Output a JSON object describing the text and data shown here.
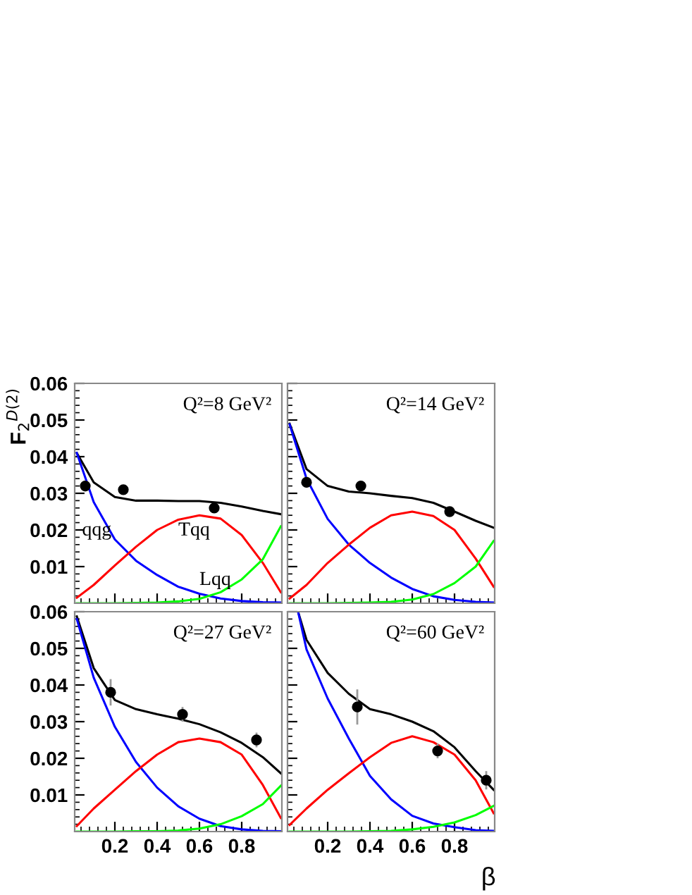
{
  "chart_data": [
    {
      "type": "line",
      "annotations": [
        "Q²=8 GeV²"
      ],
      "ylabel": "F$_{2}$$^{D(2)}$",
      "xlim": [
        0.01,
        0.99
      ],
      "ylim": [
        0,
        0.06
      ],
      "yticks": [
        0.01,
        0.02,
        0.03,
        0.04,
        0.05,
        0.06
      ],
      "xticks": [
        0.2,
        0.4,
        0.6,
        0.8
      ],
      "tick_labels": "y",
      "grid": false,
      "legend": false,
      "x": [
        0.02,
        0.1,
        0.2,
        0.3,
        0.4,
        0.5,
        0.6,
        0.7,
        0.8,
        0.9,
        0.985
      ],
      "series": [
        {
          "color": "#000000",
          "values": [
            0.041,
            0.033,
            0.029,
            0.028,
            0.028,
            0.0279,
            0.0279,
            0.0274,
            0.0264,
            0.0252,
            0.0243
          ]
        },
        {
          "name": "qqg",
          "color": "#0000ff",
          "values": [
            0.041,
            0.0276,
            0.0174,
            0.0116,
            0.0077,
            0.0045,
            0.0026,
            0.0013,
            0.0006,
            0.0003,
            0.0002
          ]
        },
        {
          "name": "Tqq",
          "color": "#ff0000",
          "values": [
            0.0015,
            0.005,
            0.0103,
            0.0154,
            0.02,
            0.0228,
            0.024,
            0.0231,
            0.0186,
            0.011,
            0.003
          ]
        },
        {
          "name": "Lqq",
          "color": "#00ff00",
          "values": [
            0,
            0,
            0,
            0.0001,
            0.0002,
            0.0005,
            0.0012,
            0.003,
            0.0065,
            0.012,
            0.021
          ]
        },
        {
          "type": "scatter",
          "color": "#000000",
          "x": [
            0.06,
            0.24,
            0.67
          ],
          "values": [
            0.032,
            0.031,
            0.026
          ],
          "errors": [
            0.0015,
            0.0012,
            0.0012
          ]
        }
      ]
    },
    {
      "type": "line",
      "annotations": [
        "Q²=14 GeV²"
      ],
      "xlim": [
        0.01,
        0.99
      ],
      "ylim": [
        0,
        0.06
      ],
      "yticks": [
        0.01,
        0.02,
        0.03,
        0.04,
        0.05,
        0.06
      ],
      "xticks": [
        0.2,
        0.4,
        0.6,
        0.8
      ],
      "tick_labels": false,
      "grid": false,
      "legend": false,
      "x": [
        0.02,
        0.1,
        0.2,
        0.3,
        0.4,
        0.5,
        0.6,
        0.7,
        0.8,
        0.9,
        0.985
      ],
      "series": [
        {
          "color": "#000000",
          "values": [
            0.049,
            0.0366,
            0.032,
            0.0305,
            0.03,
            0.0293,
            0.0287,
            0.0274,
            0.025,
            0.0225,
            0.0206
          ]
        },
        {
          "color": "#0000ff",
          "values": [
            0.0488,
            0.034,
            0.023,
            0.016,
            0.011,
            0.007,
            0.0039,
            0.0019,
            0.0009,
            0.0004,
            0.0002
          ]
        },
        {
          "color": "#ff0000",
          "values": [
            0.0013,
            0.005,
            0.011,
            0.016,
            0.0206,
            0.024,
            0.025,
            0.0238,
            0.02,
            0.0122,
            0.0045
          ]
        },
        {
          "color": "#00ff00",
          "values": [
            0,
            0,
            0,
            0.0001,
            0.0002,
            0.0004,
            0.001,
            0.0025,
            0.0055,
            0.01,
            0.017
          ]
        },
        {
          "type": "scatter",
          "color": "#000000",
          "x": [
            0.1,
            0.357,
            0.777
          ],
          "values": [
            0.033,
            0.032,
            0.025
          ],
          "errors": [
            0.0015,
            0.0012,
            0.0012
          ]
        }
      ]
    },
    {
      "type": "line",
      "annotations": [
        "Q²=27 GeV²"
      ],
      "xlim": [
        0.01,
        0.99
      ],
      "ylim": [
        0,
        0.06
      ],
      "yticks": [
        0.01,
        0.02,
        0.03,
        0.04,
        0.05,
        0.06
      ],
      "xticks": [
        0.2,
        0.4,
        0.6,
        0.8
      ],
      "grid": false,
      "legend": false,
      "x": [
        0.02,
        0.1,
        0.2,
        0.3,
        0.4,
        0.5,
        0.6,
        0.7,
        0.8,
        0.9,
        0.985
      ],
      "series": [
        {
          "color": "#000000",
          "values": [
            0.0587,
            0.0446,
            0.0359,
            0.0334,
            0.032,
            0.0308,
            0.0293,
            0.0271,
            0.0242,
            0.0203,
            0.0159
          ]
        },
        {
          "color": "#0000ff",
          "values": [
            0.058,
            0.042,
            0.0286,
            0.019,
            0.012,
            0.0069,
            0.0035,
            0.0015,
            0.0006,
            0.0002,
            0.0001
          ]
        },
        {
          "color": "#ff0000",
          "values": [
            0.0015,
            0.0063,
            0.0114,
            0.0165,
            0.021,
            0.0244,
            0.0254,
            0.0244,
            0.021,
            0.0127,
            0.0037
          ]
        },
        {
          "color": "#00ff00",
          "values": [
            0,
            0,
            0,
            0.0001,
            0.0001,
            0.0003,
            0.0008,
            0.002,
            0.0042,
            0.0075,
            0.0125
          ]
        },
        {
          "type": "scatter",
          "color": "#000000",
          "x": [
            0.18,
            0.52,
            0.87
          ],
          "values": [
            0.038,
            0.032,
            0.025
          ],
          "errors": [
            0.0036,
            0.002,
            0.002
          ]
        }
      ]
    },
    {
      "type": "line",
      "annotations": [
        "Q²=60 GeV²"
      ],
      "xlabel": "β",
      "xlim": [
        0.01,
        0.99
      ],
      "ylim": [
        0,
        0.06
      ],
      "yticks": [
        0.01,
        0.02,
        0.03,
        0.04,
        0.05,
        0.06
      ],
      "xticks": [
        0.2,
        0.4,
        0.6,
        0.8
      ],
      "tick_labels": "x",
      "grid": false,
      "legend": false,
      "x": [
        0.06,
        0.1,
        0.2,
        0.3,
        0.4,
        0.5,
        0.6,
        0.7,
        0.8,
        0.9,
        0.985
      ],
      "series": [
        {
          "color": "#000000",
          "values": [
            0.06,
            0.0523,
            0.0433,
            0.0376,
            0.0334,
            0.032,
            0.03,
            0.0274,
            0.023,
            0.0165,
            0.0114
          ]
        },
        {
          "color": "#0000ff",
          "values": [
            0.06,
            0.0497,
            0.0363,
            0.0254,
            0.0152,
            0.0088,
            0.0043,
            0.0022,
            0.0012,
            0.0004,
            0.0002
          ]
        },
        {
          "color": "#ff0000",
          "x": [
            0.02,
            0.1,
            0.2,
            0.3,
            0.4,
            0.5,
            0.6,
            0.7,
            0.8,
            0.9,
            0.985
          ],
          "values": [
            0.0018,
            0.0063,
            0.0114,
            0.0159,
            0.0203,
            0.0242,
            0.026,
            0.0244,
            0.021,
            0.014,
            0.005
          ]
        },
        {
          "color": "#00ff00",
          "x": [
            0.02,
            0.1,
            0.2,
            0.3,
            0.4,
            0.5,
            0.6,
            0.7,
            0.8,
            0.9,
            0.985
          ],
          "values": [
            0,
            0,
            0,
            0,
            0.0001,
            0.0002,
            0.0006,
            0.0013,
            0.0025,
            0.0045,
            0.007
          ]
        },
        {
          "type": "scatter",
          "color": "#000000",
          "x": [
            0.34,
            0.72,
            0.95
          ],
          "values": [
            0.034,
            0.022,
            0.014
          ],
          "errors": [
            0.0048,
            0.002,
            0.0025
          ]
        }
      ]
    }
  ]
}
